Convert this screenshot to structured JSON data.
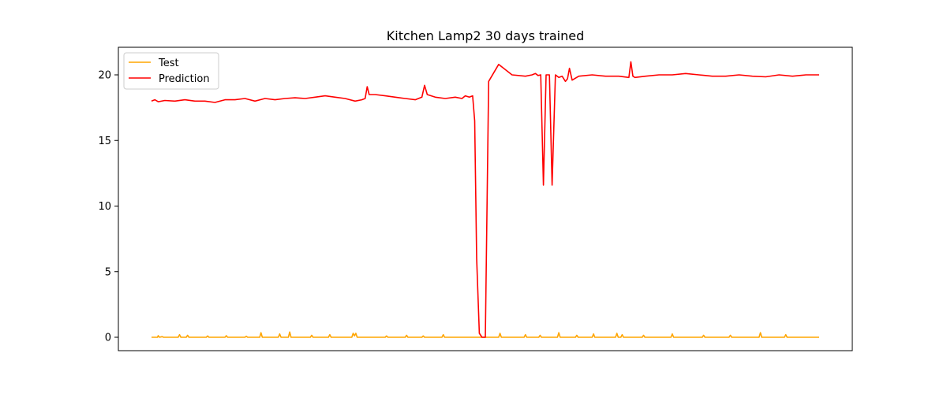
{
  "chart_data": {
    "type": "line",
    "title": "Kitchen Lamp2 30 days trained",
    "xlabel": "",
    "ylabel": "",
    "ylim": [
      -1,
      22
    ],
    "yticks": [
      0,
      5,
      10,
      15,
      20
    ],
    "xticks_visible": false,
    "grid": false,
    "legend": {
      "position": "upper-left",
      "entries": [
        "Test",
        "Prediction"
      ]
    },
    "x_range": [
      0,
      100
    ],
    "series": [
      {
        "name": "Test",
        "color": "#FFA500",
        "x": [
          0,
          0.9,
          1.0,
          1.2,
          1.6,
          1.8,
          4.0,
          4.2,
          4.4,
          5.2,
          5.4,
          5.6,
          8.2,
          8.4,
          8.6,
          11.0,
          11.2,
          11.4,
          14.0,
          14.2,
          14.4,
          16.2,
          16.4,
          16.6,
          19.0,
          19.2,
          19.4,
          20.5,
          20.7,
          20.9,
          23.8,
          24.0,
          24.2,
          26.5,
          26.7,
          26.9,
          30.0,
          30.2,
          30.4,
          30.6,
          30.8,
          35.0,
          35.2,
          35.4,
          38.0,
          38.2,
          38.4,
          40.5,
          40.7,
          40.9,
          43.5,
          43.7,
          43.9,
          52.0,
          52.2,
          52.4,
          55.8,
          56.0,
          56.2,
          58.0,
          58.2,
          58.4,
          60.8,
          61.0,
          61.2,
          63.5,
          63.7,
          63.9,
          66.0,
          66.2,
          66.4,
          69.5,
          69.7,
          69.9,
          70.3,
          70.5,
          70.7,
          73.5,
          73.7,
          73.9,
          77.8,
          78.0,
          78.2,
          82.5,
          82.7,
          82.9,
          86.5,
          86.7,
          86.9,
          91.0,
          91.2,
          91.4,
          94.8,
          95.0,
          95.2,
          100
        ],
        "values": [
          0,
          0,
          0.12,
          0,
          0.05,
          0,
          0,
          0.2,
          0,
          0,
          0.15,
          0,
          0,
          0.1,
          0,
          0,
          0.12,
          0,
          0,
          0.08,
          0,
          0,
          0.35,
          0,
          0,
          0.25,
          0,
          0,
          0.4,
          0,
          0,
          0.15,
          0,
          0,
          0.2,
          0,
          0,
          0.3,
          0.1,
          0.3,
          0,
          0,
          0.1,
          0,
          0,
          0.15,
          0,
          0,
          0.1,
          0,
          0,
          0.2,
          0,
          0,
          0.3,
          0,
          0,
          0.2,
          0,
          0,
          0.15,
          0,
          0,
          0.35,
          0,
          0,
          0.15,
          0,
          0,
          0.25,
          0,
          0,
          0.3,
          0,
          0,
          0.2,
          0,
          0,
          0.15,
          0,
          0,
          0.25,
          0,
          0,
          0.15,
          0,
          0,
          0.15,
          0,
          0,
          0.35,
          0,
          0,
          0.2,
          0,
          0
        ]
      },
      {
        "name": "Prediction",
        "color": "#FF0000",
        "x": [
          0,
          0.5,
          1.0,
          2.0,
          3.5,
          5.0,
          6.5,
          8.0,
          9.5,
          11.0,
          12.5,
          14.0,
          15.5,
          17.0,
          18.5,
          20.0,
          21.5,
          23.0,
          24.5,
          26.0,
          27.5,
          29.0,
          30.5,
          31.5,
          32.0,
          32.3,
          32.6,
          33.5,
          35.0,
          36.5,
          38.0,
          39.5,
          40.5,
          40.9,
          41.3,
          42.5,
          44.0,
          45.5,
          46.5,
          47.0,
          47.6,
          48.1,
          48.4,
          48.7,
          49.1,
          49.5,
          50.0,
          50.5,
          52.0,
          54.0,
          56.0,
          57.0,
          57.5,
          57.9,
          58.3,
          58.7,
          59.1,
          59.6,
          60.0,
          60.5,
          61.0,
          61.5,
          62.0,
          62.3,
          62.6,
          63.0,
          64.0,
          66.0,
          68.0,
          70.0,
          71.5,
          71.8,
          72.1,
          72.4,
          74.0,
          76.0,
          78.0,
          80.0,
          82.0,
          84.0,
          86.0,
          88.0,
          90.0,
          92.0,
          94.0,
          96.0,
          98.0,
          100
        ],
        "values": [
          18.0,
          18.1,
          17.95,
          18.05,
          18.0,
          18.1,
          18.0,
          18.0,
          17.9,
          18.1,
          18.1,
          18.2,
          18.0,
          18.2,
          18.1,
          18.2,
          18.25,
          18.2,
          18.3,
          18.4,
          18.3,
          18.2,
          18.0,
          18.1,
          18.2,
          19.1,
          18.5,
          18.5,
          18.4,
          18.3,
          18.2,
          18.1,
          18.3,
          19.2,
          18.5,
          18.3,
          18.2,
          18.3,
          18.2,
          18.4,
          18.3,
          18.4,
          16.5,
          6.0,
          0.3,
          0.0,
          0.0,
          19.5,
          20.8,
          20.0,
          19.9,
          20.0,
          20.1,
          19.95,
          20.0,
          11.6,
          20.0,
          20.0,
          11.6,
          20.0,
          19.8,
          19.9,
          19.5,
          19.7,
          20.5,
          19.6,
          19.9,
          20.0,
          19.9,
          19.9,
          19.8,
          21.0,
          19.9,
          19.8,
          19.9,
          20.0,
          20.0,
          20.1,
          20.0,
          19.9,
          19.9,
          20.0,
          19.9,
          19.85,
          20.0,
          19.9,
          20.0,
          20.0
        ]
      }
    ]
  }
}
